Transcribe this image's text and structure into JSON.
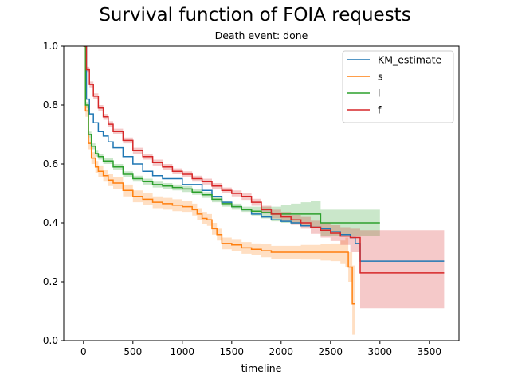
{
  "chart_data": {
    "type": "line",
    "title": "Survival function of FOIA requests",
    "subtitle": "Death event: done",
    "xlabel": "timeline",
    "ylabel": "",
    "xlim": [
      -200,
      3800
    ],
    "ylim": [
      0,
      1
    ],
    "xticks": [
      "0",
      "500",
      "1000",
      "1500",
      "2000",
      "2500",
      "3000",
      "3500"
    ],
    "yticks": [
      "0.0",
      "0.2",
      "0.4",
      "0.6",
      "0.8",
      "1.0"
    ],
    "grid": false,
    "legend_position": "top-right",
    "series": [
      {
        "name": "KM_estimate",
        "color": "#1f77b4",
        "x": [
          0,
          30,
          60,
          100,
          150,
          200,
          250,
          300,
          400,
          500,
          600,
          700,
          800,
          1000,
          1200,
          1300,
          1400,
          1500,
          1600,
          1700,
          1800,
          1900,
          2000,
          2100,
          2200,
          2300,
          2400,
          2500,
          2600,
          2700,
          2750,
          2800,
          3650
        ],
        "y": [
          1.0,
          0.82,
          0.77,
          0.74,
          0.71,
          0.695,
          0.675,
          0.655,
          0.625,
          0.6,
          0.575,
          0.56,
          0.55,
          0.53,
          0.51,
          0.49,
          0.47,
          0.455,
          0.445,
          0.43,
          0.42,
          0.41,
          0.405,
          0.4,
          0.39,
          0.385,
          0.38,
          0.37,
          0.36,
          0.35,
          0.33,
          0.27,
          0.27
        ],
        "ci_lower": [],
        "ci_upper": []
      },
      {
        "name": "s",
        "color": "#ff7f0e",
        "x": [
          0,
          20,
          50,
          80,
          120,
          150,
          200,
          250,
          300,
          400,
          500,
          600,
          700,
          800,
          900,
          1000,
          1100,
          1150,
          1200,
          1250,
          1300,
          1350,
          1400,
          1500,
          1600,
          1700,
          1800,
          1900,
          2000,
          2200,
          2400,
          2500,
          2600,
          2650,
          2680,
          2720,
          2750
        ],
        "y": [
          1.0,
          0.78,
          0.67,
          0.62,
          0.59,
          0.575,
          0.56,
          0.545,
          0.535,
          0.51,
          0.49,
          0.48,
          0.47,
          0.465,
          0.46,
          0.455,
          0.445,
          0.43,
          0.415,
          0.41,
          0.38,
          0.36,
          0.33,
          0.325,
          0.315,
          0.31,
          0.305,
          0.3,
          0.3,
          0.3,
          0.3,
          0.3,
          0.3,
          0.3,
          0.25,
          0.125,
          0.125
        ],
        "ci_lower": [
          1.0,
          0.76,
          0.65,
          0.6,
          0.57,
          0.555,
          0.54,
          0.525,
          0.515,
          0.49,
          0.47,
          0.46,
          0.45,
          0.445,
          0.44,
          0.435,
          0.425,
          0.41,
          0.395,
          0.39,
          0.36,
          0.34,
          0.31,
          0.305,
          0.295,
          0.29,
          0.283,
          0.278,
          0.278,
          0.275,
          0.272,
          0.27,
          0.26,
          0.25,
          0.2,
          0.02,
          0.02
        ],
        "ci_upper": [
          1.0,
          0.8,
          0.69,
          0.64,
          0.61,
          0.595,
          0.58,
          0.565,
          0.555,
          0.53,
          0.51,
          0.5,
          0.49,
          0.485,
          0.48,
          0.475,
          0.465,
          0.45,
          0.435,
          0.43,
          0.4,
          0.38,
          0.35,
          0.345,
          0.335,
          0.33,
          0.327,
          0.322,
          0.322,
          0.325,
          0.328,
          0.33,
          0.34,
          0.35,
          0.3,
          0.255,
          0.255
        ]
      },
      {
        "name": "l",
        "color": "#2ca02c",
        "x": [
          0,
          20,
          50,
          80,
          120,
          150,
          200,
          300,
          400,
          500,
          600,
          700,
          800,
          900,
          1000,
          1100,
          1200,
          1300,
          1400,
          1500,
          1600,
          1700,
          1800,
          1900,
          2000,
          2100,
          2200,
          2300,
          2400,
          2500,
          2600,
          2700,
          2800,
          2900,
          3000
        ],
        "y": [
          1.0,
          0.8,
          0.7,
          0.66,
          0.635,
          0.625,
          0.61,
          0.59,
          0.565,
          0.55,
          0.54,
          0.53,
          0.525,
          0.52,
          0.515,
          0.505,
          0.495,
          0.48,
          0.465,
          0.455,
          0.445,
          0.44,
          0.435,
          0.43,
          0.43,
          0.43,
          0.43,
          0.43,
          0.4,
          0.4,
          0.4,
          0.4,
          0.4,
          0.4,
          0.4
        ],
        "ci_lower": [
          1.0,
          0.79,
          0.69,
          0.65,
          0.625,
          0.615,
          0.6,
          0.58,
          0.555,
          0.54,
          0.53,
          0.52,
          0.515,
          0.51,
          0.505,
          0.495,
          0.485,
          0.47,
          0.455,
          0.445,
          0.435,
          0.425,
          0.415,
          0.405,
          0.4,
          0.395,
          0.39,
          0.385,
          0.355,
          0.355,
          0.355,
          0.355,
          0.355,
          0.355,
          0.355
        ],
        "ci_upper": [
          1.0,
          0.81,
          0.71,
          0.67,
          0.645,
          0.635,
          0.62,
          0.6,
          0.575,
          0.56,
          0.55,
          0.54,
          0.535,
          0.53,
          0.525,
          0.515,
          0.505,
          0.49,
          0.475,
          0.465,
          0.455,
          0.455,
          0.455,
          0.455,
          0.46,
          0.465,
          0.47,
          0.475,
          0.445,
          0.445,
          0.445,
          0.445,
          0.445,
          0.445,
          0.445
        ]
      },
      {
        "name": "f",
        "color": "#d62728",
        "x": [
          0,
          30,
          60,
          100,
          150,
          200,
          250,
          300,
          400,
          500,
          600,
          700,
          800,
          900,
          1000,
          1100,
          1200,
          1300,
          1400,
          1500,
          1600,
          1700,
          1800,
          1900,
          2000,
          2100,
          2200,
          2300,
          2400,
          2500,
          2600,
          2700,
          2800,
          3650
        ],
        "y": [
          1.0,
          0.92,
          0.87,
          0.83,
          0.79,
          0.76,
          0.735,
          0.71,
          0.68,
          0.645,
          0.625,
          0.605,
          0.59,
          0.575,
          0.565,
          0.55,
          0.54,
          0.525,
          0.51,
          0.5,
          0.49,
          0.47,
          0.445,
          0.43,
          0.42,
          0.41,
          0.4,
          0.385,
          0.375,
          0.365,
          0.355,
          0.35,
          0.23,
          0.23
        ],
        "ci_lower": [
          1.0,
          0.91,
          0.86,
          0.82,
          0.78,
          0.75,
          0.725,
          0.7,
          0.67,
          0.635,
          0.615,
          0.595,
          0.58,
          0.565,
          0.555,
          0.54,
          0.53,
          0.515,
          0.5,
          0.49,
          0.478,
          0.458,
          0.432,
          0.415,
          0.405,
          0.393,
          0.38,
          0.363,
          0.35,
          0.338,
          0.325,
          0.3,
          0.11,
          0.11
        ],
        "ci_upper": [
          1.0,
          0.93,
          0.88,
          0.84,
          0.8,
          0.77,
          0.745,
          0.72,
          0.69,
          0.655,
          0.635,
          0.615,
          0.6,
          0.585,
          0.575,
          0.56,
          0.55,
          0.535,
          0.52,
          0.51,
          0.502,
          0.482,
          0.458,
          0.445,
          0.435,
          0.427,
          0.42,
          0.407,
          0.4,
          0.392,
          0.385,
          0.38,
          0.375,
          0.375
        ]
      }
    ]
  }
}
